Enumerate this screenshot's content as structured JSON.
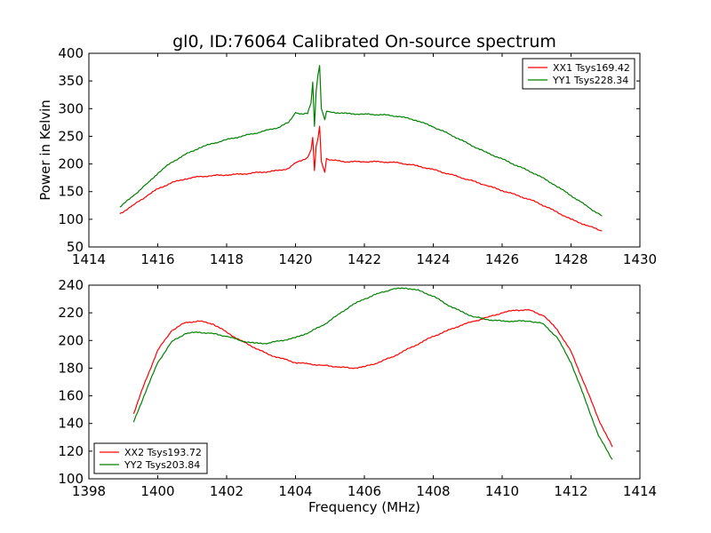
{
  "title": "gl0, ID:76064 Calibrated On-source spectrum",
  "chart_data": [
    {
      "type": "line",
      "title": "gl0, ID:76064 Calibrated On-source spectrum",
      "xlabel": "",
      "ylabel": "Power in Kelvin",
      "xlim": [
        1414,
        1430
      ],
      "ylim": [
        50,
        400
      ],
      "xticks": [
        1414,
        1416,
        1418,
        1420,
        1422,
        1424,
        1426,
        1428,
        1430
      ],
      "yticks": [
        50,
        100,
        150,
        200,
        250,
        300,
        350,
        400
      ],
      "legend_position": "top-right",
      "grid": false,
      "series": [
        {
          "name": "XX1 Tsys169.42",
          "color": "#ff0000",
          "x": [
            1414.9,
            1415.3,
            1415.7,
            1416.0,
            1416.4,
            1416.8,
            1417.2,
            1417.6,
            1418.0,
            1418.5,
            1419.0,
            1419.5,
            1419.8,
            1420.0,
            1420.2,
            1420.35,
            1420.45,
            1420.5,
            1420.55,
            1420.6,
            1420.65,
            1420.7,
            1420.75,
            1420.85,
            1420.9,
            1421.0,
            1421.5,
            1422.0,
            1422.5,
            1423.0,
            1423.5,
            1424.0,
            1424.5,
            1425.0,
            1425.5,
            1426.0,
            1426.5,
            1427.0,
            1427.5,
            1428.0,
            1428.5,
            1428.9
          ],
          "values": [
            110,
            126,
            143,
            155,
            166,
            173,
            177,
            179,
            180,
            182,
            185,
            188,
            192,
            202,
            207,
            212,
            225,
            248,
            188,
            232,
            245,
            268,
            205,
            185,
            210,
            207,
            204,
            204,
            204,
            202,
            197,
            190,
            181,
            172,
            162,
            152,
            142,
            131,
            116,
            100,
            88,
            79
          ]
        },
        {
          "name": "YY1 Tsys228.34",
          "color": "#008000",
          "x": [
            1414.9,
            1415.3,
            1415.7,
            1416.0,
            1416.4,
            1416.8,
            1417.2,
            1417.6,
            1418.0,
            1418.5,
            1419.0,
            1419.5,
            1419.8,
            1420.0,
            1420.2,
            1420.35,
            1420.45,
            1420.5,
            1420.55,
            1420.6,
            1420.65,
            1420.7,
            1420.75,
            1420.85,
            1420.9,
            1421.0,
            1421.5,
            1422.0,
            1422.5,
            1423.0,
            1423.5,
            1424.0,
            1424.5,
            1425.0,
            1425.5,
            1426.0,
            1426.5,
            1427.0,
            1427.5,
            1428.0,
            1428.5,
            1428.9
          ],
          "values": [
            122,
            143,
            165,
            183,
            203,
            217,
            229,
            237,
            244,
            251,
            258,
            266,
            275,
            293,
            290,
            291,
            310,
            348,
            268,
            332,
            360,
            378,
            300,
            280,
            295,
            294,
            291,
            290,
            289,
            286,
            279,
            267,
            253,
            237,
            222,
            209,
            195,
            181,
            163,
            143,
            122,
            106
          ]
        }
      ]
    },
    {
      "type": "line",
      "title": "",
      "xlabel": "Frequency (MHz)",
      "ylabel": "",
      "xlim": [
        1398,
        1414
      ],
      "ylim": [
        100,
        240
      ],
      "xticks": [
        1398,
        1400,
        1402,
        1404,
        1406,
        1408,
        1410,
        1412,
        1414
      ],
      "yticks": [
        100,
        120,
        140,
        160,
        180,
        200,
        220,
        240
      ],
      "legend_position": "lower-left",
      "grid": false,
      "series": [
        {
          "name": "XX2 Tsys193.72",
          "color": "#ff0000",
          "x": [
            1399.3,
            1399.6,
            1400.0,
            1400.4,
            1400.8,
            1401.2,
            1401.6,
            1402.0,
            1402.4,
            1402.8,
            1403.2,
            1403.6,
            1404.0,
            1404.4,
            1404.8,
            1405.2,
            1405.6,
            1406.0,
            1406.4,
            1406.8,
            1407.2,
            1407.6,
            1408.0,
            1408.4,
            1408.8,
            1409.2,
            1409.6,
            1410.0,
            1410.4,
            1410.8,
            1411.2,
            1411.6,
            1412.0,
            1412.4,
            1412.8,
            1413.2
          ],
          "values": [
            147,
            168,
            193,
            207,
            213,
            214,
            212,
            206,
            200,
            195,
            190,
            187,
            184,
            183,
            182,
            181,
            180,
            181,
            184,
            188,
            193,
            198,
            203,
            207,
            211,
            214,
            217,
            220,
            222,
            222,
            218,
            208,
            192,
            168,
            143,
            123
          ]
        },
        {
          "name": "YY2 Tsys203.84",
          "color": "#008000",
          "x": [
            1399.3,
            1399.6,
            1400.0,
            1400.4,
            1400.8,
            1401.2,
            1401.6,
            1402.0,
            1402.4,
            1402.8,
            1403.2,
            1403.6,
            1404.0,
            1404.4,
            1404.8,
            1405.2,
            1405.6,
            1406.0,
            1406.4,
            1406.8,
            1407.2,
            1407.6,
            1408.0,
            1408.4,
            1408.8,
            1409.2,
            1409.6,
            1410.0,
            1410.4,
            1410.8,
            1411.2,
            1411.6,
            1412.0,
            1412.4,
            1412.8,
            1413.2
          ],
          "values": [
            141,
            160,
            184,
            199,
            205,
            206,
            205,
            203,
            200,
            198,
            198,
            200,
            202,
            206,
            211,
            218,
            225,
            230,
            234,
            237,
            238,
            236,
            232,
            226,
            221,
            217,
            215,
            214,
            214,
            214,
            212,
            202,
            184,
            158,
            131,
            114
          ]
        }
      ]
    }
  ]
}
